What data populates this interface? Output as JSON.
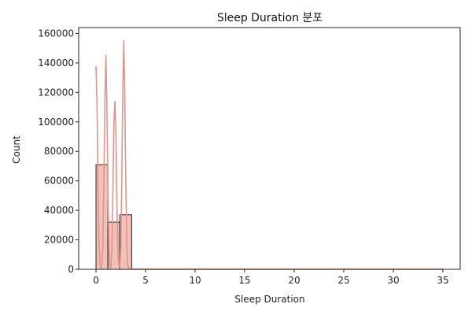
{
  "chart_data": {
    "type": "bar",
    "title": "Sleep Duration 분포",
    "xlabel": "Sleep Duration",
    "ylabel": "Count",
    "xlim": [
      -1.75,
      36.75
    ],
    "ylim": [
      0,
      164000
    ],
    "x_ticks": [
      0,
      5,
      10,
      15,
      20,
      25,
      30,
      35
    ],
    "y_ticks": [
      0,
      20000,
      40000,
      60000,
      80000,
      100000,
      120000,
      140000,
      160000
    ],
    "bins": [
      {
        "start": 0.0,
        "end": 1.2,
        "count": 71000
      },
      {
        "start": 1.2,
        "end": 2.4,
        "count": 32000
      },
      {
        "start": 2.4,
        "end": 3.6,
        "count": 37000
      }
    ],
    "kde": {
      "name": "density",
      "x": [
        0.0,
        0.1,
        0.2,
        0.3,
        0.4,
        0.5,
        0.6,
        0.7,
        0.8,
        0.9,
        1.0,
        1.1,
        1.2,
        1.3,
        1.4,
        1.5,
        1.6,
        1.7,
        1.8,
        1.9,
        2.0,
        2.1,
        2.2,
        2.3,
        2.4,
        2.5,
        2.6,
        2.7,
        2.8,
        2.9,
        3.0,
        3.1,
        3.2,
        3.3,
        3.4,
        3.5,
        3.6,
        4.0,
        5.0,
        10.0,
        20.0,
        30.0,
        35.0
      ],
      "y": [
        138000,
        112000,
        60000,
        18000,
        3000,
        500,
        3000,
        18000,
        62000,
        115000,
        145000,
        110000,
        55000,
        15000,
        2000,
        1000,
        12000,
        50000,
        98000,
        114000,
        95000,
        48000,
        12000,
        2000,
        1500,
        15000,
        60000,
        120000,
        155000,
        120000,
        62000,
        18000,
        3000,
        500,
        200,
        100,
        50,
        20,
        0,
        0,
        0,
        0,
        0
      ]
    },
    "colors": {
      "bar_fill": "#f2c2ba",
      "bar_edge": "#222222",
      "kde_line": "#e0958a",
      "axis": "#222222"
    },
    "grid": false,
    "legend": "none"
  }
}
